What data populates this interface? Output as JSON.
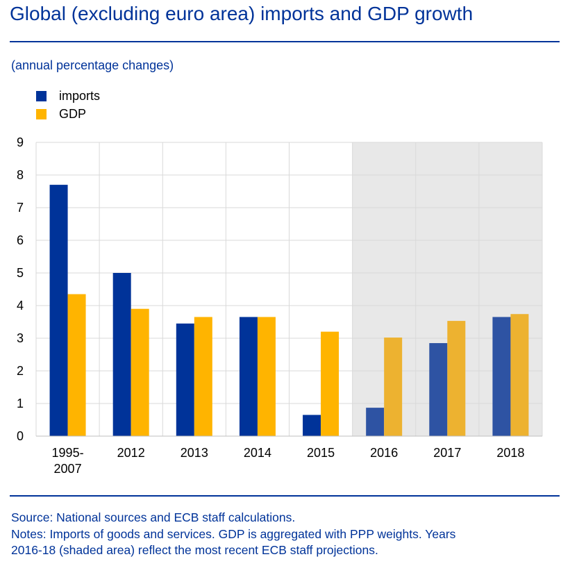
{
  "chart_data": {
    "type": "bar",
    "title": "Global (excluding euro area) imports and GDP growth",
    "subtitle": "(annual percentage changes)",
    "categories": [
      "1995-\n2007",
      "2012",
      "2013",
      "2014",
      "2015",
      "2016",
      "2017",
      "2018"
    ],
    "series": [
      {
        "name": "imports",
        "values": [
          7.7,
          5.0,
          3.45,
          3.65,
          0.65,
          0.87,
          2.85,
          3.65
        ],
        "color": "#003399",
        "projection_color": "#2e53a3"
      },
      {
        "name": "GDP",
        "values": [
          4.35,
          3.9,
          3.65,
          3.65,
          3.2,
          3.02,
          3.53,
          3.74
        ],
        "color": "#ffb400",
        "projection_color": "#edb230"
      }
    ],
    "ylim": [
      0,
      9
    ],
    "yticks": [
      0,
      1,
      2,
      3,
      4,
      5,
      6,
      7,
      8,
      9
    ],
    "grid": true,
    "legend": "top-left",
    "shaded_categories": [
      "2016",
      "2017",
      "2018"
    ],
    "shade_color": "#e8e8e8",
    "xlabel": "",
    "ylabel": ""
  },
  "footer": {
    "source": "Source: National sources and ECB staff calculations.",
    "notes_line1": "Notes: Imports of goods and services. GDP is aggregated with PPP weights. Years",
    "notes_line2": "2016-18 (shaded area) reflect the most recent ECB staff projections."
  }
}
